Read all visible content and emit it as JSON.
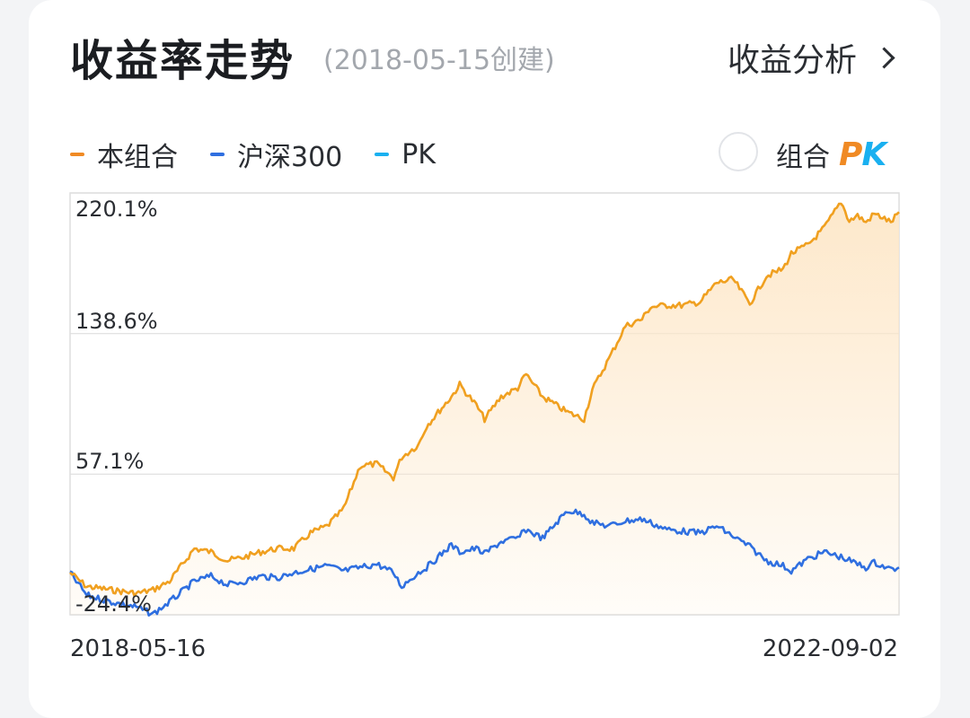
{
  "header": {
    "title": "收益率走势",
    "subtitle": "(2018-05-15创建)",
    "analysis_link": "收益分析"
  },
  "legend": [
    {
      "label": "本组合",
      "color": "#f08a24"
    },
    {
      "label": "沪深300",
      "color": "#2f6fe0"
    },
    {
      "label": "PK",
      "color": "#1ab0f0"
    }
  ],
  "pk_toggle": {
    "label": "组合",
    "badge_p": "P",
    "badge_k": "K",
    "badge_p_color": "#f08a24",
    "badge_k_color": "#1ab0f0"
  },
  "colors": {
    "portfolio_line": "#f0a020",
    "portfolio_fill": "#fde7c8",
    "benchmark_line": "#2f6fe0",
    "grid": "#dedede"
  },
  "chart_data": {
    "type": "line",
    "y_ticks": [
      "220.1%",
      "138.6%",
      "57.1%",
      "-24.4%"
    ],
    "y_tick_values": [
      220.1,
      138.6,
      57.1,
      -24.4
    ],
    "ylim": [
      -24.4,
      220.1
    ],
    "x_start": "2018-05-16",
    "x_end": "2022-09-02",
    "x": [
      0.0,
      0.02,
      0.05,
      0.08,
      0.1,
      0.12,
      0.15,
      0.17,
      0.19,
      0.21,
      0.23,
      0.25,
      0.27,
      0.29,
      0.31,
      0.33,
      0.35,
      0.37,
      0.39,
      0.4,
      0.42,
      0.43,
      0.46,
      0.47,
      0.49,
      0.5,
      0.52,
      0.54,
      0.55,
      0.57,
      0.6,
      0.62,
      0.63,
      0.65,
      0.67,
      0.69,
      0.7,
      0.72,
      0.74,
      0.76,
      0.78,
      0.8,
      0.82,
      0.84,
      0.86,
      0.87,
      0.89,
      0.9,
      0.91,
      0.93,
      0.94,
      0.95,
      0.96,
      0.97,
      0.98,
      0.99,
      1.0
    ],
    "series": [
      {
        "name": "本组合",
        "values": [
          0,
          -8,
          -10,
          -12,
          -10,
          -5,
          14,
          12,
          7,
          9,
          12,
          14,
          14,
          23,
          27,
          37,
          62,
          63,
          55,
          67,
          74,
          85,
          102,
          109,
          97,
          89,
          102,
          107,
          115,
          102,
          93,
          89,
          106,
          124,
          143,
          147,
          154,
          155,
          155,
          157,
          168,
          170,
          156,
          172,
          176,
          185,
          190,
          195,
          200,
          215,
          204,
          207,
          203,
          208,
          206,
          203,
          209
        ]
      },
      {
        "name": "沪深300",
        "values": [
          0,
          -13,
          -17,
          -20,
          -24,
          -17,
          -5,
          -2,
          -7,
          -5,
          -2,
          -3,
          0,
          2,
          4,
          1,
          3,
          5,
          0,
          -8,
          0,
          3,
          16,
          12,
          14,
          11,
          18,
          20,
          25,
          20,
          36,
          34,
          29,
          27,
          30,
          31,
          29,
          25,
          24,
          23,
          27,
          21,
          15,
          7,
          4,
          1,
          8,
          10,
          12,
          9,
          7,
          5,
          3,
          6,
          4,
          2,
          3
        ]
      }
    ]
  }
}
